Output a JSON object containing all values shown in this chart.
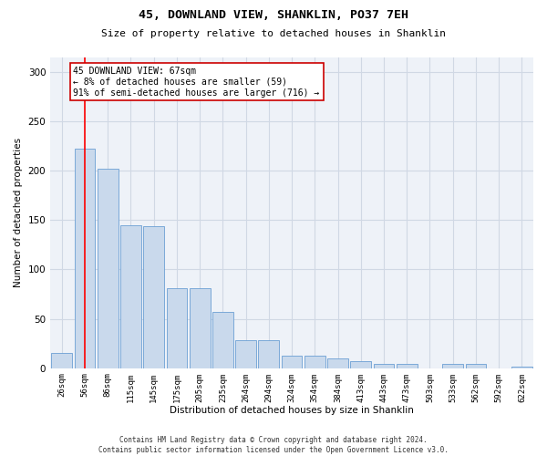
{
  "title": "45, DOWNLAND VIEW, SHANKLIN, PO37 7EH",
  "subtitle": "Size of property relative to detached houses in Shanklin",
  "xlabel": "Distribution of detached houses by size in Shanklin",
  "ylabel": "Number of detached properties",
  "categories": [
    "26sqm",
    "56sqm",
    "86sqm",
    "115sqm",
    "145sqm",
    "175sqm",
    "205sqm",
    "235sqm",
    "264sqm",
    "294sqm",
    "324sqm",
    "354sqm",
    "384sqm",
    "413sqm",
    "443sqm",
    "473sqm",
    "503sqm",
    "533sqm",
    "562sqm",
    "592sqm",
    "622sqm"
  ],
  "values": [
    15,
    222,
    202,
    145,
    144,
    81,
    81,
    57,
    28,
    28,
    13,
    13,
    10,
    7,
    4,
    4,
    0,
    4,
    4,
    0,
    2
  ],
  "bar_color": "#c9d9ec",
  "bar_edge_color": "#6b9fd4",
  "grid_color": "#d0d8e4",
  "background_color": "#ffffff",
  "plot_background_color": "#eef2f8",
  "red_line_x": 1.0,
  "annotation_text": "45 DOWNLAND VIEW: 67sqm\n← 8% of detached houses are smaller (59)\n91% of semi-detached houses are larger (716) →",
  "annotation_box_color": "#ffffff",
  "annotation_box_edge_color": "#cc0000",
  "ylim": [
    0,
    315
  ],
  "yticks": [
    0,
    50,
    100,
    150,
    200,
    250,
    300
  ],
  "footnote": "Contains HM Land Registry data © Crown copyright and database right 2024.\nContains public sector information licensed under the Open Government Licence v3.0."
}
